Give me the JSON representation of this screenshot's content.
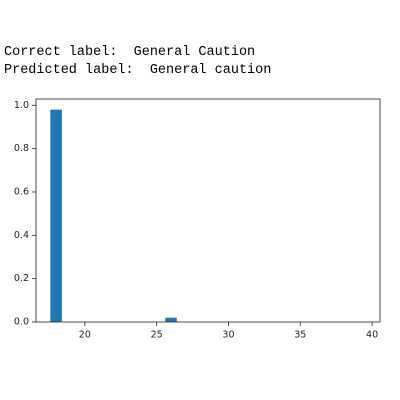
{
  "text_lines": [
    "Correct label:  General Caution",
    "Predicted label:  General caution"
  ],
  "chart_data": {
    "type": "bar",
    "x": [
      18,
      26
    ],
    "values": [
      0.98,
      0.02
    ],
    "color": "#1f77b4",
    "xlim": [
      16.6,
      40.55
    ],
    "xticks": [
      20,
      25,
      30,
      35,
      40
    ],
    "ylim": [
      0,
      1.029
    ],
    "yticks": [
      {
        "value": 0,
        "label": "0.0"
      },
      0.2,
      0.4,
      0.6,
      0.8,
      {
        "value": 1,
        "label": "1.0"
      }
    ]
  }
}
